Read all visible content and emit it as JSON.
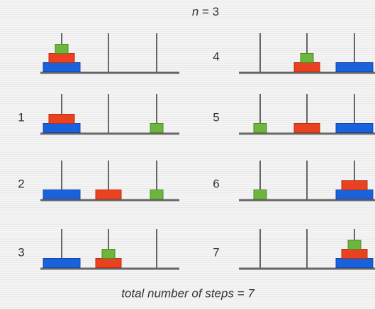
{
  "title": {
    "variable": "n",
    "rest": " = 3"
  },
  "steps": [
    {
      "label": "1"
    },
    {
      "label": "2"
    },
    {
      "label": "3"
    },
    {
      "label": "4"
    },
    {
      "label": "5"
    },
    {
      "label": "6"
    },
    {
      "label": "7"
    }
  ],
  "footer": "total number of steps = 7"
}
